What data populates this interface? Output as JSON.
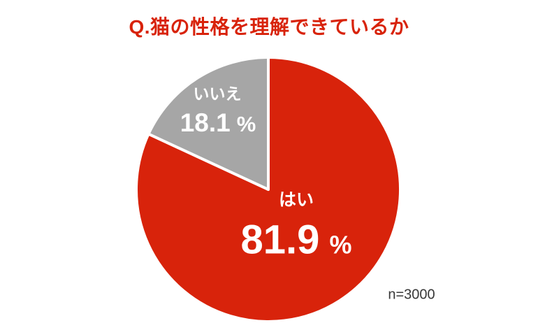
{
  "page": {
    "background_color": "#FFFFFF"
  },
  "chart_data": {
    "type": "pie",
    "title": "Q.猫の性格を理解できているか",
    "title_color": "#D8230B",
    "start_angle_deg": 0,
    "direction": "clockwise",
    "divider_color": "#FFFFFF",
    "sample_size_label": "n=3000",
    "legend_position": "none",
    "labels_position": "inside-slices",
    "slices": [
      {
        "label": "はい",
        "value": 81.9,
        "value_text": "81.9",
        "unit": "%",
        "color": "#D8230B",
        "text_color": "#FFFFFF"
      },
      {
        "label": "いいえ",
        "value": 18.1,
        "value_text": "18.1",
        "unit": "%",
        "color": "#A6A6A6",
        "text_color": "#FFFFFF"
      }
    ]
  }
}
